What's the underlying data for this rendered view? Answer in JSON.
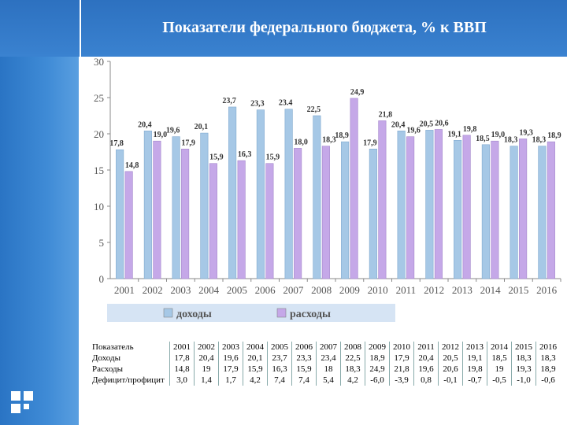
{
  "title": "Показатели федерального бюджета, % к ВВП",
  "chart_data": {
    "type": "bar",
    "categories": [
      "2001",
      "2002",
      "2003",
      "2004",
      "2005",
      "2006",
      "2007",
      "2008",
      "2009",
      "2010",
      "2011",
      "2012",
      "2013",
      "2014",
      "2015",
      "2016"
    ],
    "series": [
      {
        "name": "доходы",
        "values": [
          17.8,
          20.4,
          19.6,
          20.1,
          23.7,
          23.3,
          23.4,
          22.5,
          18.9,
          17.9,
          20.4,
          20.5,
          19.1,
          18.5,
          18.3,
          18.3
        ],
        "labels": [
          "17,8",
          "20,4",
          "19,6",
          "20,1",
          "23,7",
          "23,3",
          "23.4",
          "22,5",
          "18,9",
          "17,9",
          "20,4",
          "20,5",
          "19,1",
          "18,5",
          "18,3",
          "18,3"
        ],
        "color": "#a6c8e6"
      },
      {
        "name": "расходы",
        "values": [
          14.8,
          19.0,
          17.9,
          15.9,
          16.3,
          15.9,
          18.0,
          18.3,
          24.9,
          21.8,
          19.6,
          20.6,
          19.8,
          19.0,
          19.3,
          18.9
        ],
        "labels": [
          "14,8",
          "19,0",
          "17,9",
          "15,9",
          "16,3",
          "15,9",
          "18,0",
          "18,3",
          "24,9",
          "21,8",
          "19,6",
          "20,6",
          "19,8",
          "19,0",
          "19,3",
          "18,9"
        ],
        "color": "#c5a8e8"
      }
    ],
    "yticks": [
      "0",
      "5",
      "10",
      "15",
      "20",
      "25",
      "30"
    ],
    "ylim": [
      0,
      30
    ],
    "legend_placement": "bottom"
  },
  "table": {
    "header": [
      "Показатель",
      "2001",
      "2002",
      "2003",
      "2004",
      "2005",
      "2006",
      "2007",
      "2008",
      "2009",
      "2010",
      "2011",
      "2012",
      "2013",
      "2014",
      "2015",
      "2016"
    ],
    "rows": [
      [
        "Доходы",
        "17,8",
        "20,4",
        "19,6",
        "20,1",
        "23,7",
        "23,3",
        "23,4",
        "22,5",
        "18,9",
        "17,9",
        "20,4",
        "20,5",
        "19,1",
        "18,5",
        "18,3",
        "18,3"
      ],
      [
        "Расходы",
        "14,8",
        "19",
        "17,9",
        "15,9",
        "16,3",
        "15,9",
        "18",
        "18,3",
        "24,9",
        "21,8",
        "19,6",
        "20,6",
        "19,8",
        "19",
        "19,3",
        "18,9"
      ],
      [
        "Дефицит/профицит",
        "3,0",
        "1,4",
        "1,7",
        "4,2",
        "7,4",
        "7,4",
        "5,4",
        "4,2",
        "-6,0",
        "-3,9",
        "0,8",
        "-0,1",
        "-0,7",
        "-0,5",
        "-1,0",
        "-0,6"
      ]
    ]
  },
  "colors": {
    "accent": "#2d71c0"
  }
}
